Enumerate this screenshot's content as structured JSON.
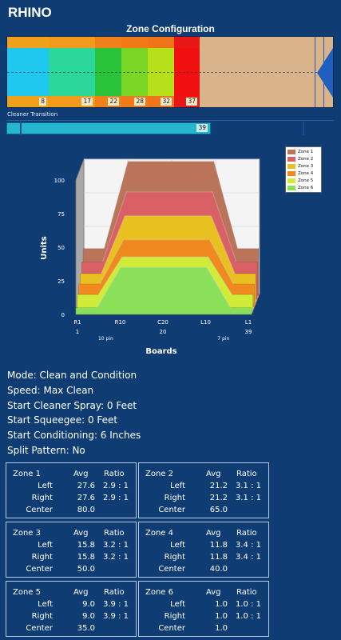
{
  "app_title": "RHINO",
  "zone_config": {
    "title": "Zone Configuration",
    "segments": [
      {
        "label": "8",
        "top": "#f0a01a",
        "mid": "#1ec8ef",
        "bot": "#f0a01a"
      },
      {
        "label": "17",
        "top": "#f29a1c",
        "mid": "#2bd89a",
        "bot": "#f29a1c"
      },
      {
        "label": "22",
        "top": "#f0801a",
        "mid": "#2ac43a",
        "bot": "#f0801a"
      },
      {
        "label": "28",
        "top": "#f07a18",
        "mid": "#7ad624",
        "bot": "#f07a18"
      },
      {
        "label": "32",
        "top": "#f07418",
        "mid": "#b6e01a",
        "bot": "#f07418"
      },
      {
        "label": "37",
        "top": "#e81818",
        "mid": "#f01010",
        "bot": "#e81818"
      }
    ]
  },
  "cleaner_transition": {
    "label": "Cleaner Transition",
    "value_label": "39"
  },
  "chart_data": {
    "type": "area",
    "ylabel": "Units",
    "xlabel": "Boards",
    "yticks": [
      "0",
      "25",
      "50",
      "75",
      "100"
    ],
    "ylim": [
      0,
      100
    ],
    "xticks_top": [
      "R1",
      "R10",
      "C20",
      "L10",
      "L1"
    ],
    "xticks_bottom": [
      "1",
      "20",
      "39"
    ],
    "x_annotations": [
      "10 pin",
      "7 pin"
    ],
    "legend_position": "top-right",
    "series": [
      {
        "name": "Zone 1",
        "color": "#b9745a",
        "edge": 35,
        "plateau": 100
      },
      {
        "name": "Zone 2",
        "color": "#d96065",
        "edge": 28,
        "plateau": 80
      },
      {
        "name": "Zone 3",
        "color": "#e8c020",
        "edge": 22,
        "plateau": 65
      },
      {
        "name": "Zone 4",
        "color": "#f08a20",
        "edge": 17,
        "plateau": 50
      },
      {
        "name": "Zone 5",
        "color": "#d0ec38",
        "edge": 12,
        "plateau": 40
      },
      {
        "name": "Zone 6",
        "color": "#8be05a",
        "edge": 5,
        "plateau": 35
      }
    ]
  },
  "mode_info": [
    "Mode: Clean and Condition",
    "Speed: Max Clean",
    "Start Cleaner Spray: 0 Feet",
    "Start Squeegee: 0 Feet",
    "Start Conditioning: 6 Inches",
    "Split Pattern: No"
  ],
  "zone_table": {
    "avg_header": "Avg",
    "ratio_header": "Ratio",
    "zones": [
      {
        "name": "Zone 1",
        "rows": [
          {
            "label": "Left",
            "avg": "27.6",
            "ratio": "2.9 : 1"
          },
          {
            "label": "Right",
            "avg": "27.6",
            "ratio": "2.9 : 1"
          },
          {
            "label": "Center",
            "avg": "80.0",
            "ratio": ""
          }
        ]
      },
      {
        "name": "Zone 2",
        "rows": [
          {
            "label": "Left",
            "avg": "21.2",
            "ratio": "3.1 : 1"
          },
          {
            "label": "Right",
            "avg": "21.2",
            "ratio": "3.1 : 1"
          },
          {
            "label": "Center",
            "avg": "65.0",
            "ratio": ""
          }
        ]
      },
      {
        "name": "Zone 3",
        "rows": [
          {
            "label": "Left",
            "avg": "15.8",
            "ratio": "3.2 : 1"
          },
          {
            "label": "Right",
            "avg": "15.8",
            "ratio": "3.2 : 1"
          },
          {
            "label": "Center",
            "avg": "50.0",
            "ratio": ""
          }
        ]
      },
      {
        "name": "Zone 4",
        "rows": [
          {
            "label": "Left",
            "avg": "11.8",
            "ratio": "3.4 : 1"
          },
          {
            "label": "Right",
            "avg": "11.8",
            "ratio": "3.4 : 1"
          },
          {
            "label": "Center",
            "avg": "40.0",
            "ratio": ""
          }
        ]
      },
      {
        "name": "Zone 5",
        "rows": [
          {
            "label": "Left",
            "avg": "9.0",
            "ratio": "3.9 : 1"
          },
          {
            "label": "Right",
            "avg": "9.0",
            "ratio": "3.9 : 1"
          },
          {
            "label": "Center",
            "avg": "35.0",
            "ratio": ""
          }
        ]
      },
      {
        "name": "Zone 6",
        "rows": [
          {
            "label": "Left",
            "avg": "1.0",
            "ratio": "1.0 : 1"
          },
          {
            "label": "Right",
            "avg": "1.0",
            "ratio": "1.0 : 1"
          },
          {
            "label": "Center",
            "avg": "1.0",
            "ratio": ""
          }
        ]
      }
    ]
  }
}
